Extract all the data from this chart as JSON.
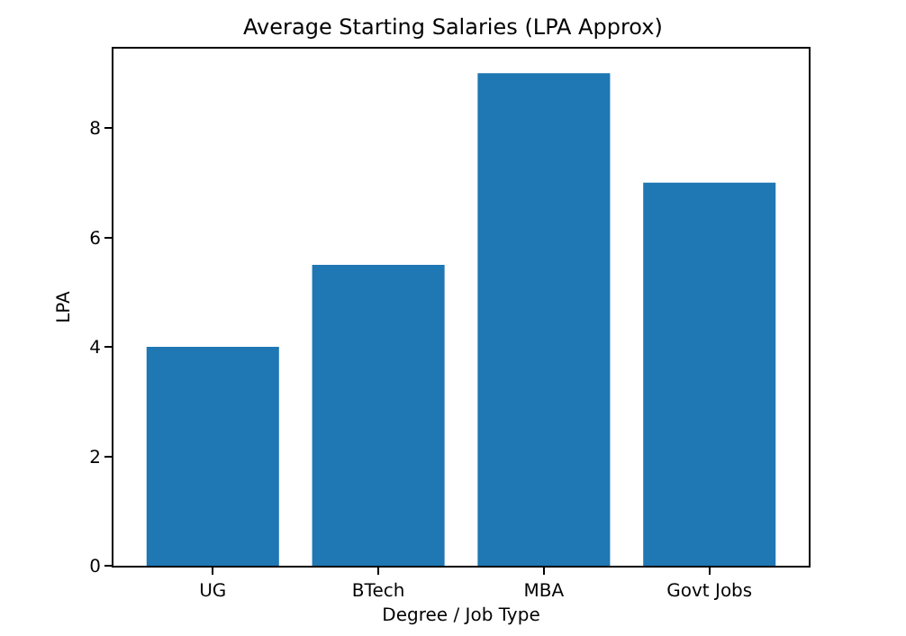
{
  "chart_data": {
    "type": "bar",
    "title": "Average Starting Salaries (LPA Approx)",
    "xlabel": "Degree / Job Type",
    "ylabel": "LPA",
    "categories": [
      "UG",
      "BTech",
      "MBA",
      "Govt Jobs"
    ],
    "values": [
      4,
      5.5,
      9,
      7
    ],
    "color": "#1f77b4",
    "ylim": [
      0,
      9.45
    ],
    "yticks": [
      0,
      2,
      4,
      6,
      8
    ],
    "grid": false
  }
}
